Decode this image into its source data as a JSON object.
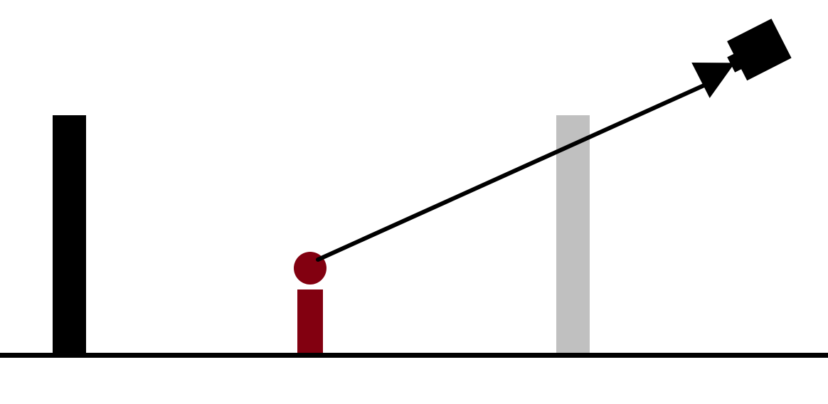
{
  "diagram": {
    "colors": {
      "background": "#ffffff",
      "ground": "#000000",
      "black_pillar": "#000000",
      "gray_pillar": "#c0c0c0",
      "person": "#820010",
      "sight_line": "#000000",
      "camera": "#000000"
    },
    "elements": [
      "ground-line",
      "black-pillar",
      "person-figure",
      "gray-pillar",
      "sight-line",
      "camera-icon"
    ]
  }
}
